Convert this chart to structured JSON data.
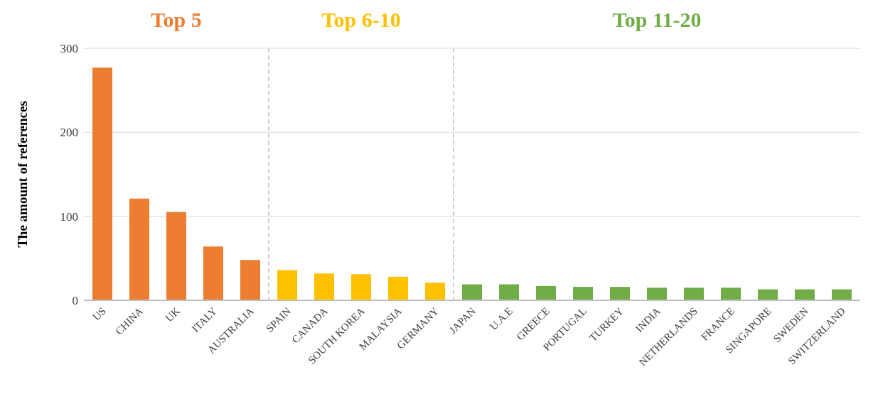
{
  "chart_data": {
    "type": "bar",
    "ylabel": "The amount of references",
    "categories": [
      "US",
      "CHINA",
      "UK",
      "ITALY",
      "AUSTRALIA",
      "SPAIN",
      "CANADA",
      "SOUTH KOREA",
      "MALAYSIA",
      "GERMANY",
      "JAPAN",
      "U.A.E",
      "GREECE",
      "PORTUGAL",
      "TURKEY",
      "INDIA",
      "NETHERLANDS",
      "FRANCE",
      "SINGAPORE",
      "SWEDEN",
      "SWITZERLAND"
    ],
    "series": [
      {
        "name": "Top 5",
        "color": "#ed7d31",
        "values": [
          277,
          121,
          105,
          64,
          48,
          null,
          null,
          null,
          null,
          null,
          null,
          null,
          null,
          null,
          null,
          null,
          null,
          null,
          null,
          null,
          null
        ]
      },
      {
        "name": "Top 6-10",
        "color": "#ffc000",
        "values": [
          null,
          null,
          null,
          null,
          null,
          36,
          32,
          31,
          28,
          21,
          null,
          null,
          null,
          null,
          null,
          null,
          null,
          null,
          null,
          null,
          null
        ]
      },
      {
        "name": "Top 11-20",
        "color": "#70ad47",
        "values": [
          null,
          null,
          null,
          null,
          null,
          null,
          null,
          null,
          null,
          null,
          19,
          19,
          17,
          16,
          16,
          15,
          15,
          15,
          13,
          13,
          13
        ]
      }
    ],
    "stacked": true,
    "ylim": [
      0,
      300
    ],
    "yticks": [
      0,
      100,
      200,
      300
    ],
    "grid": "y"
  }
}
